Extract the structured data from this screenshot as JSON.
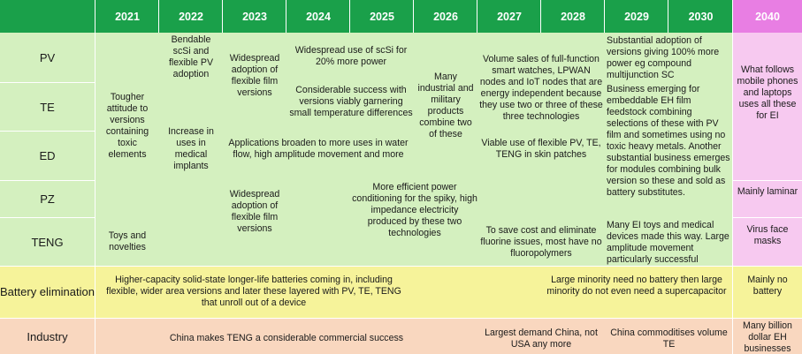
{
  "colors": {
    "header_green": "#1aa04a",
    "header_pink": "#e87ee3",
    "body_green": "#d4f0bf",
    "pink_col": "#f7c9f0",
    "battery_yellow": "#f6f39a",
    "industry_peach": "#f9d7bf"
  },
  "header": {
    "years": [
      "2021",
      "2022",
      "2023",
      "2024",
      "2025",
      "2026",
      "2027",
      "2028",
      "2029",
      "2030"
    ],
    "final_year": "2040"
  },
  "rows": {
    "pv": "PV",
    "te": "TE",
    "ed": "ED",
    "pz": "PZ",
    "teng": "TENG",
    "battery": "Battery elimination",
    "industry": "Industry"
  },
  "cells": {
    "tougher": "Tougher attitude to versions containing toxic elements",
    "toys": "Toys and novelties",
    "bendable": "Bendable scSi and flexible PV adoption",
    "medical": "Increase in uses in medical implants",
    "film_top": "Widespread adoption of flexible film versions",
    "scsi": "Widespread use of scSi for 20% more power",
    "te_success": "Considerable success with versions viably garnering small temperature differences",
    "applications": "Applications broaden to more uses in water flow, high amplitude movement and more",
    "film_bottom": "Widespread adoption of flexible film versions",
    "power_cond": "More efficient power conditioning for the spiky, high impedance electricity produced by these two technologies",
    "industrial": "Many industrial and military products combine two of these",
    "volume_sales": "Volume sales of full-function smart watches, LPWAN nodes and IoT nodes that are energy independent because they use two or three of these three technologies",
    "viable": "Viable use of flexible PV, TE, TENG in skin patches",
    "fluorine": "To save cost and eliminate fluorine issues, most have no fluoropolymers",
    "substantial": "Substantial adoption of versions giving 100% more power eg compound multijunction SC",
    "business": "Business emerging for embeddable EH film feedstock combining selections of these with PV film and sometimes using no toxic heavy metals. Another substantial business emerges for modules combining bulk version so these and sold as battery substitutes.",
    "ei_toys": "Many EI toys and medical devices made this way. Large amplitude movement particularly successful",
    "what_follows": "What follows mobile phones and laptops uses all these for EI",
    "laminar": "Mainly laminar",
    "masks": "Virus face masks",
    "batteries": "Higher-capacity solid-state longer-life batteries coming in, including flexible, wider area versions and later these layered with PV, TE, TENG that unroll out of a device",
    "minority": "Large minority need no battery then large minority do not even need a supercapacitor",
    "no_battery": "Mainly no battery",
    "china_teng": "China makes TENG a considerable commercial success",
    "largest_demand": "Largest demand China, not USA any more",
    "commoditises": "China commoditises volume TE",
    "billion": "Many billion dollar EH businesses"
  }
}
